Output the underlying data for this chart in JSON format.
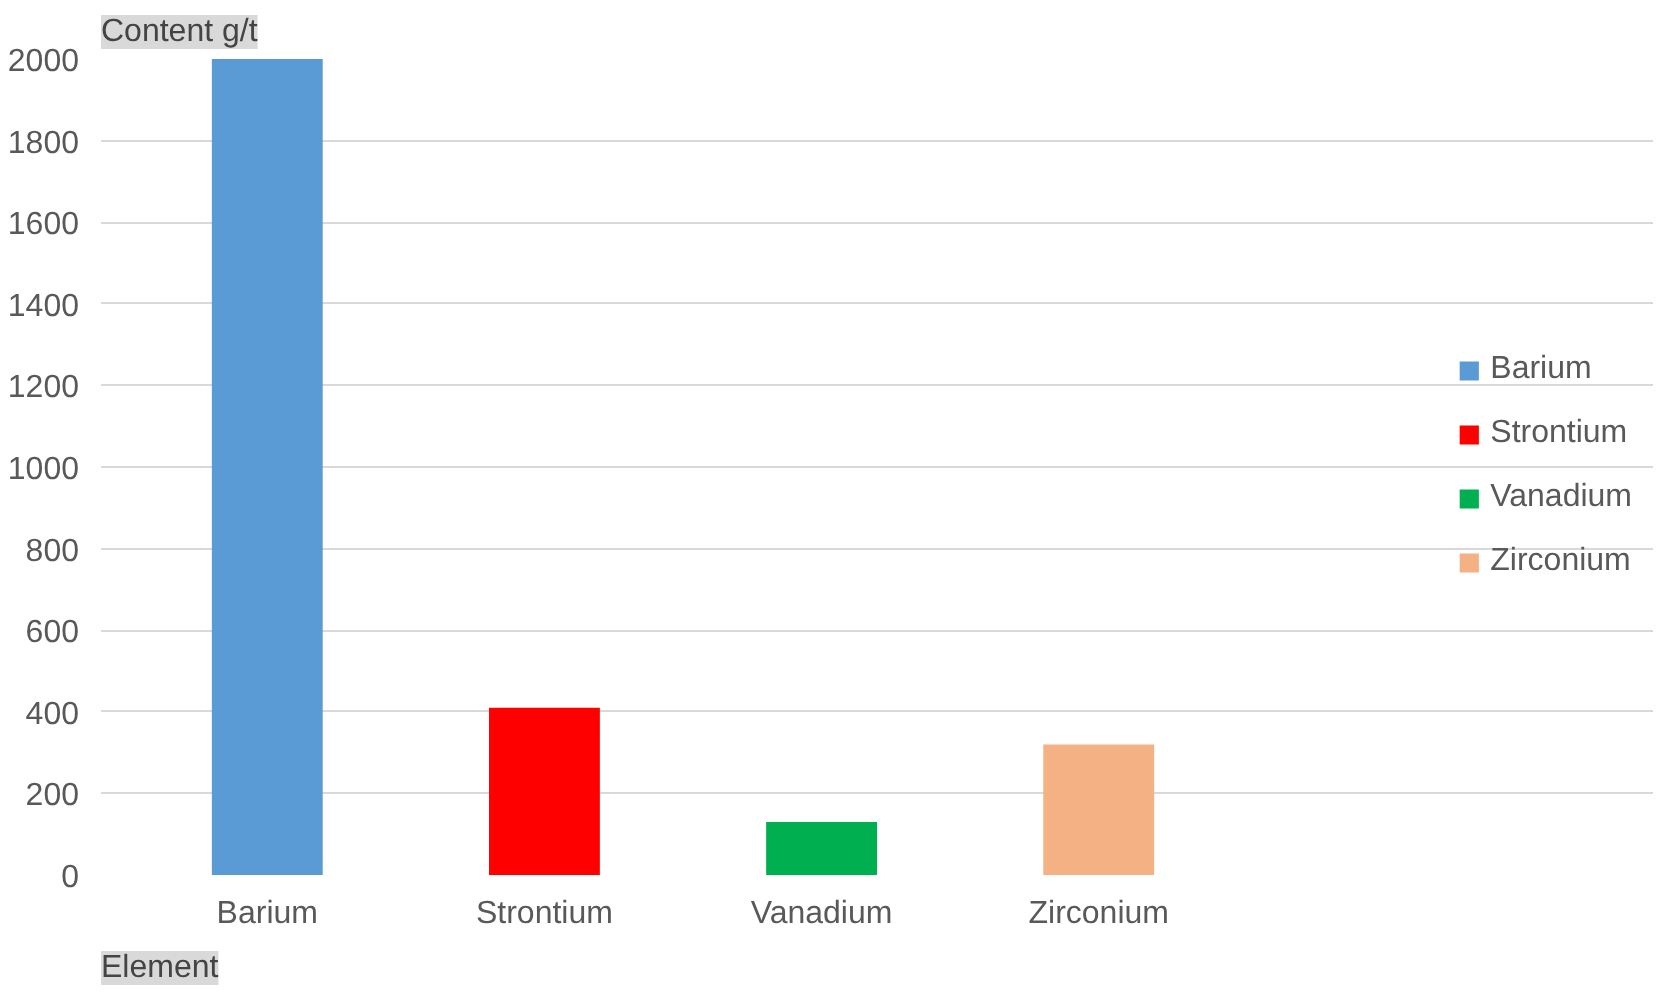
{
  "chart_data": {
    "type": "bar",
    "ylabel": "Content g/t",
    "xlabel": "Element",
    "categories": [
      "Barium",
      "Strontium",
      "Vanadium",
      "Zirconium"
    ],
    "stacked": true,
    "series": [
      {
        "name": "Barium",
        "color": "#5b9bd5",
        "values": [
          2000,
          null,
          null,
          null
        ]
      },
      {
        "name": "Strontium",
        "color": "#ff0000",
        "values": [
          null,
          410,
          null,
          null
        ]
      },
      {
        "name": "Vanadium",
        "color": "#00b050",
        "values": [
          null,
          null,
          130,
          null
        ]
      },
      {
        "name": "Zirconium",
        "color": "#f4b183",
        "values": [
          null,
          null,
          null,
          320
        ]
      }
    ],
    "ylim": [
      0,
      2000
    ],
    "yticks": [
      0,
      200,
      400,
      600,
      800,
      1000,
      1200,
      1400,
      1600,
      1800,
      2000
    ],
    "grid": "y",
    "legend": "right"
  }
}
